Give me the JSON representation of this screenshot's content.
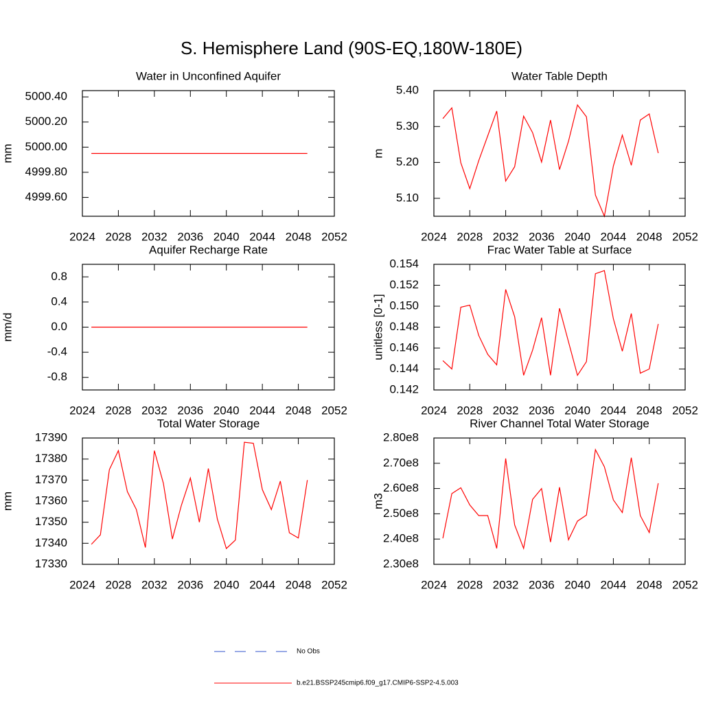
{
  "title": "S. Hemisphere Land (90S-EQ,180W-180E)",
  "chart_data": [
    {
      "type": "line",
      "title": "Water in Unconfined Aquifer",
      "y_label": "mm",
      "color": "#ff0000",
      "x": [
        2025,
        2026,
        2027,
        2028,
        2029,
        2030,
        2031,
        2032,
        2033,
        2034,
        2035,
        2036,
        2037,
        2038,
        2039,
        2040,
        2041,
        2042,
        2043,
        2044,
        2045,
        2046,
        2047,
        2048,
        2049
      ],
      "values": [
        4999.95,
        4999.95,
        4999.95,
        4999.95,
        4999.95,
        4999.95,
        4999.95,
        4999.95,
        4999.95,
        4999.95,
        4999.95,
        4999.95,
        4999.95,
        4999.95,
        4999.95,
        4999.95,
        4999.95,
        4999.95,
        4999.95,
        4999.95,
        4999.95,
        4999.95,
        4999.95,
        4999.95,
        4999.95
      ],
      "xlim": [
        2024,
        2052
      ],
      "xticks": [
        2024,
        2028,
        2032,
        2036,
        2040,
        2044,
        2048,
        2052
      ],
      "ylim": [
        4999.45,
        5000.45
      ],
      "yticks": [
        {
          "value": 4999.6,
          "label": "4999.60"
        },
        {
          "value": 4999.8,
          "label": "4999.80"
        },
        {
          "value": 5000.0,
          "label": "5000.00"
        },
        {
          "value": 5000.2,
          "label": "5000.20"
        },
        {
          "value": 5000.4,
          "label": "5000.40"
        }
      ]
    },
    {
      "type": "line",
      "title": "Water Table Depth",
      "y_label": "m",
      "color": "#ff0000",
      "x": [
        2025,
        2026,
        2027,
        2028,
        2029,
        2030,
        2031,
        2032,
        2033,
        2034,
        2035,
        2036,
        2037,
        2038,
        2039,
        2040,
        2041,
        2042,
        2043,
        2044,
        2045,
        2046,
        2047,
        2048,
        2049
      ],
      "values": [
        5.322,
        5.352,
        5.199,
        5.127,
        5.205,
        5.274,
        5.343,
        5.148,
        5.188,
        5.329,
        5.283,
        5.201,
        5.318,
        5.18,
        5.259,
        5.36,
        5.327,
        5.109,
        5.05,
        5.19,
        5.276,
        5.192,
        5.318,
        5.335,
        5.226
      ],
      "xlim": [
        2024,
        2052
      ],
      "xticks": [
        2024,
        2028,
        2032,
        2036,
        2040,
        2044,
        2048,
        2052
      ],
      "ylim": [
        5.05,
        5.4
      ],
      "yticks": [
        {
          "value": 5.1,
          "label": "5.10"
        },
        {
          "value": 5.2,
          "label": "5.20"
        },
        {
          "value": 5.3,
          "label": "5.30"
        },
        {
          "value": 5.4,
          "label": "5.40"
        }
      ]
    },
    {
      "type": "line",
      "title": "Aquifer Recharge Rate",
      "y_label": "mm/d",
      "color": "#ff0000",
      "x": [
        2025,
        2026,
        2027,
        2028,
        2029,
        2030,
        2031,
        2032,
        2033,
        2034,
        2035,
        2036,
        2037,
        2038,
        2039,
        2040,
        2041,
        2042,
        2043,
        2044,
        2045,
        2046,
        2047,
        2048,
        2049
      ],
      "values": [
        0,
        0,
        0,
        0,
        0,
        0,
        0,
        0,
        0,
        0,
        0,
        0,
        0,
        0,
        0,
        0,
        0,
        0,
        0,
        0,
        0,
        0,
        0,
        0,
        0
      ],
      "xlim": [
        2024,
        2052
      ],
      "xticks": [
        2024,
        2028,
        2032,
        2036,
        2040,
        2044,
        2048,
        2052
      ],
      "ylim": [
        -1,
        1
      ],
      "yticks": [
        -0.8,
        -0.4,
        {
          "value": 0,
          "label": "0.0"
        },
        0.4,
        0.8
      ]
    },
    {
      "type": "line",
      "title": "Frac Water Table at Surface",
      "y_label": "unitless [0-1]",
      "color": "#ff0000",
      "x": [
        2025,
        2026,
        2027,
        2028,
        2029,
        2030,
        2031,
        2032,
        2033,
        2034,
        2035,
        2036,
        2037,
        2038,
        2039,
        2040,
        2041,
        2042,
        2043,
        2044,
        2045,
        2046,
        2047,
        2048,
        2049
      ],
      "values": [
        0.1448,
        0.144,
        0.1499,
        0.1501,
        0.1472,
        0.1454,
        0.1444,
        0.1516,
        0.149,
        0.1434,
        0.1458,
        0.1489,
        0.1434,
        0.1498,
        0.1466,
        0.1434,
        0.1447,
        0.1531,
        0.1534,
        0.1488,
        0.1457,
        0.1493,
        0.1436,
        0.144,
        0.1483
      ],
      "xlim": [
        2024,
        2052
      ],
      "xticks": [
        2024,
        2028,
        2032,
        2036,
        2040,
        2044,
        2048,
        2052
      ],
      "ylim": [
        0.142,
        0.154
      ],
      "yticks": [
        0.142,
        0.144,
        0.146,
        0.148,
        {
          "value": 0.15,
          "label": "0.150"
        },
        0.152,
        0.154
      ]
    },
    {
      "type": "line",
      "title": "Total Water Storage",
      "y_label": "mm",
      "color": "#ff0000",
      "x": [
        2025,
        2026,
        2027,
        2028,
        2029,
        2030,
        2031,
        2032,
        2033,
        2034,
        2035,
        2036,
        2037,
        2038,
        2039,
        2040,
        2041,
        2042,
        2043,
        2044,
        2045,
        2046,
        2047,
        2048,
        2049
      ],
      "values": [
        17339.5,
        17344,
        17375,
        17384,
        17364.5,
        17356,
        17338,
        17384,
        17368.5,
        17342,
        17358,
        17371,
        17350,
        17375.5,
        17351.5,
        17337.5,
        17341.5,
        17388,
        17387.5,
        17365.5,
        17356,
        17369.5,
        17345,
        17342.5,
        17370
      ],
      "xlim": [
        2024,
        2052
      ],
      "xticks": [
        2024,
        2028,
        2032,
        2036,
        2040,
        2044,
        2048,
        2052
      ],
      "ylim": [
        17330,
        17390
      ],
      "yticks": [
        17330,
        17340,
        17350,
        17360,
        17370,
        17380,
        17390
      ]
    },
    {
      "type": "line",
      "title": "River Channel Total Water Storage",
      "y_label": "m3",
      "color": "#ff0000",
      "x": [
        2025,
        2026,
        2027,
        2028,
        2029,
        2030,
        2031,
        2032,
        2033,
        2034,
        2035,
        2036,
        2037,
        2038,
        2039,
        2040,
        2041,
        2042,
        2043,
        2044,
        2045,
        2046,
        2047,
        2048,
        2049
      ],
      "values": [
        240300000,
        258000000,
        260300000,
        253500000,
        249300000,
        249300000,
        236300000,
        271900000,
        245600000,
        236300000,
        255700000,
        260000000,
        238800000,
        260500000,
        239700000,
        247100000,
        249500000,
        275400000,
        268600000,
        255500000,
        250500000,
        272200000,
        249300000,
        242600000,
        262100000
      ],
      "xlim": [
        2024,
        2052
      ],
      "xticks": [
        2024,
        2028,
        2032,
        2036,
        2040,
        2044,
        2048,
        2052
      ],
      "ylim": [
        230000000,
        280000000
      ],
      "yticks": [
        {
          "value": 230000000,
          "label": "2.30e8"
        },
        {
          "value": 240000000,
          "label": "2.40e8"
        },
        {
          "value": 250000000,
          "label": "2.50e8"
        },
        {
          "value": 260000000,
          "label": "2.60e8"
        },
        {
          "value": 270000000,
          "label": "2.70e8"
        },
        {
          "value": 280000000,
          "label": "2.80e8"
        }
      ]
    }
  ],
  "legend": [
    {
      "name": "No Obs",
      "color": "#3355cc",
      "dashed": true
    },
    {
      "name": "b.e21.BSSP245cmip6.f09_g17.CMIP6-SSP2-4.5.003",
      "color": "#ff0000",
      "dashed": false
    }
  ]
}
